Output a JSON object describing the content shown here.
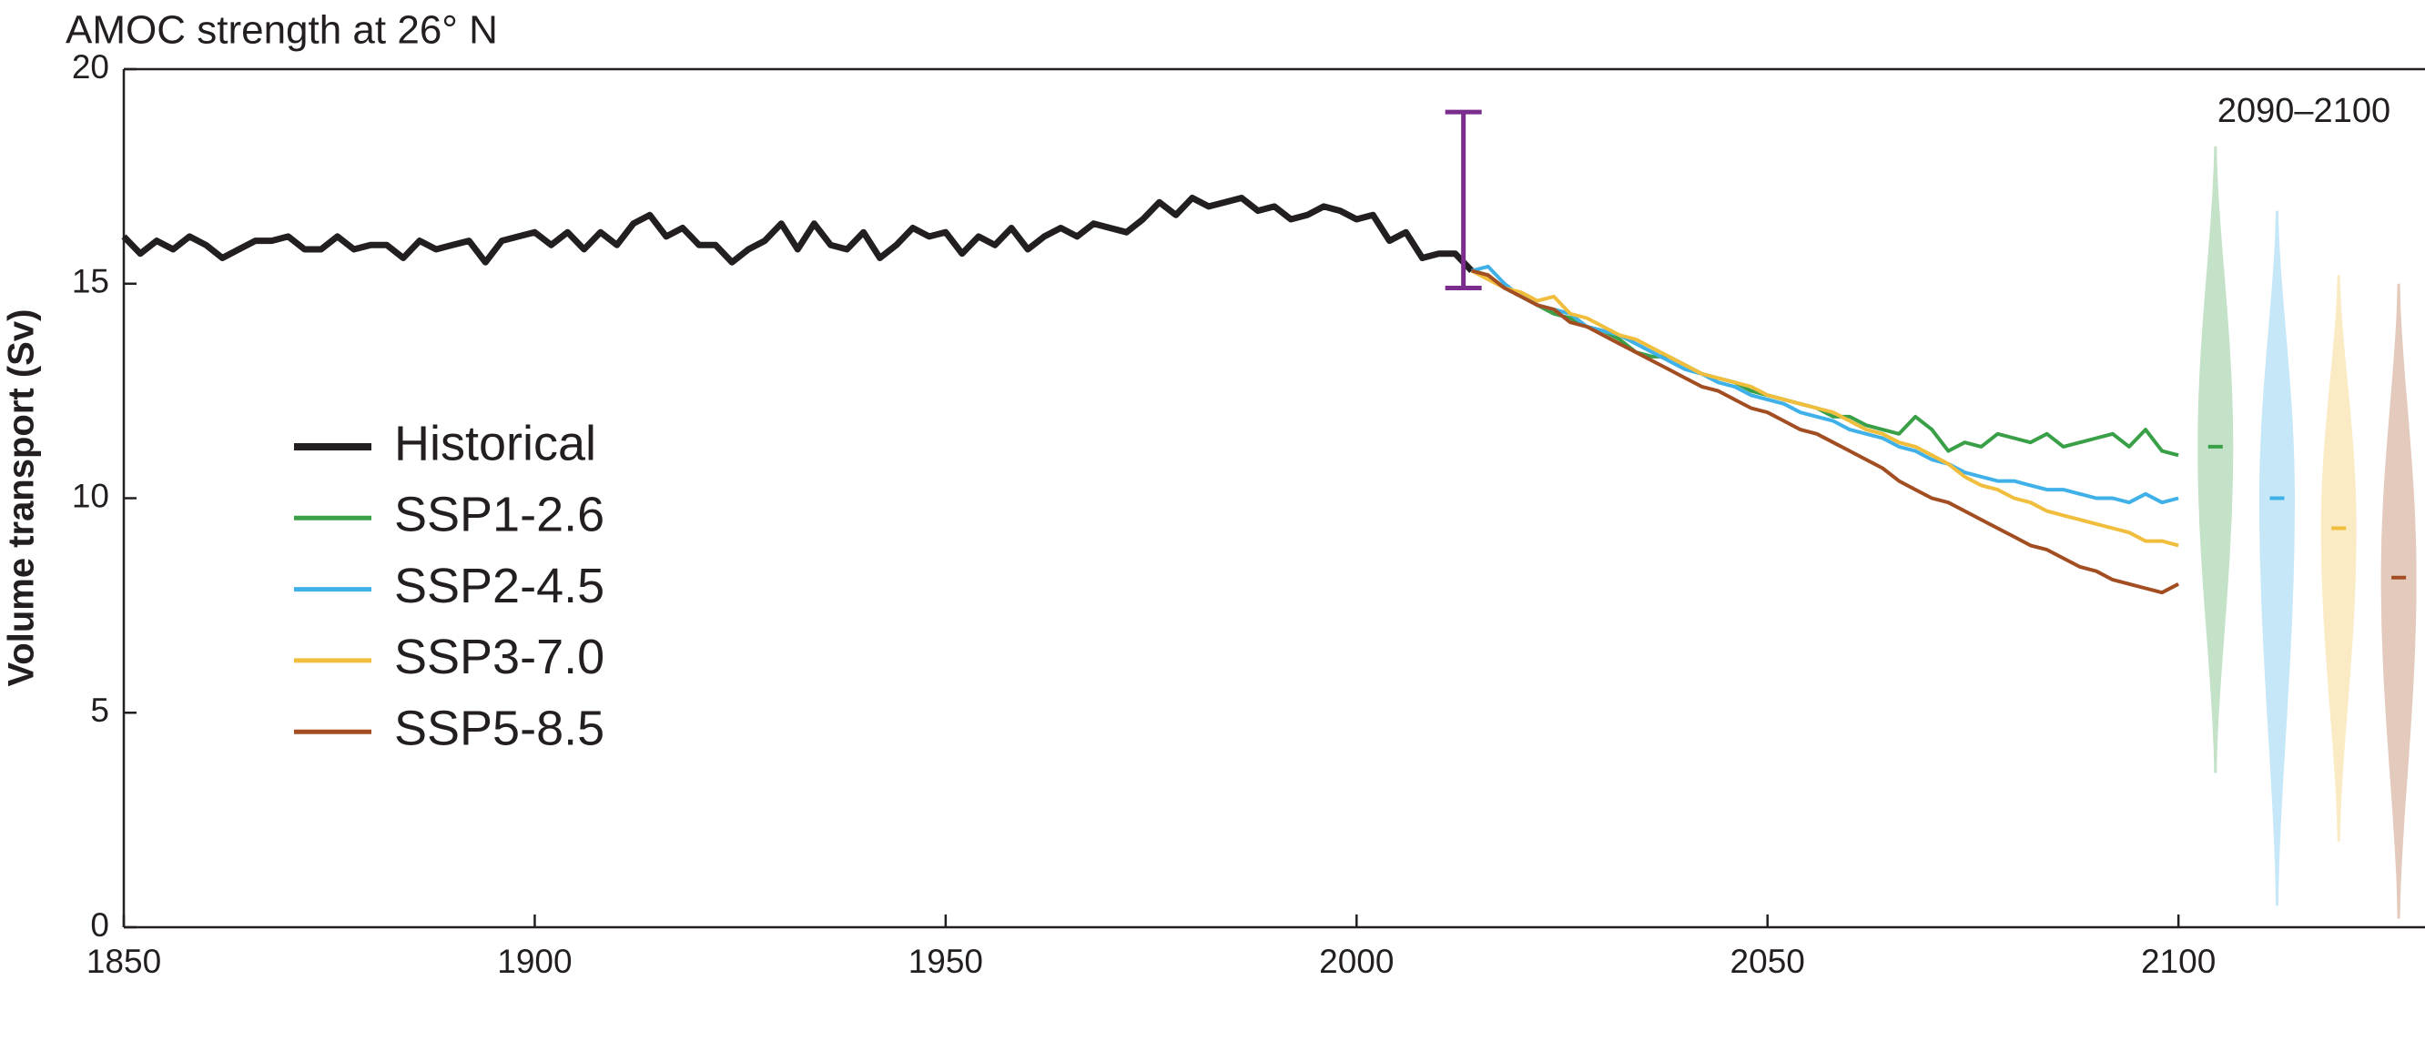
{
  "chart_data": {
    "type": "line",
    "title": "AMOC strength at 26° N",
    "y_label": "Volume transport (Sv)",
    "annotation": "2090–2100",
    "xlim": [
      1850,
      2130
    ],
    "ylim": [
      0,
      20
    ],
    "xticks": [
      1850,
      1900,
      1950,
      2000,
      2050,
      2100
    ],
    "yticks": [
      0,
      5,
      10,
      15,
      20
    ],
    "grid": false,
    "legend_position": "left",
    "observation": {
      "x": 2013,
      "low": 14.9,
      "high": 19.0,
      "color": "#7b2d8e"
    },
    "series": [
      {
        "name": "Historical",
        "color": "#231f20",
        "x": [
          1850,
          1852,
          1854,
          1856,
          1858,
          1860,
          1862,
          1864,
          1866,
          1868,
          1870,
          1872,
          1874,
          1876,
          1878,
          1880,
          1882,
          1884,
          1886,
          1888,
          1890,
          1892,
          1894,
          1896,
          1898,
          1900,
          1902,
          1904,
          1906,
          1908,
          1910,
          1912,
          1914,
          1916,
          1918,
          1920,
          1922,
          1924,
          1926,
          1928,
          1930,
          1932,
          1934,
          1936,
          1938,
          1940,
          1942,
          1944,
          1946,
          1948,
          1950,
          1952,
          1954,
          1956,
          1958,
          1960,
          1962,
          1964,
          1966,
          1968,
          1970,
          1972,
          1974,
          1976,
          1978,
          1980,
          1982,
          1984,
          1986,
          1988,
          1990,
          1992,
          1994,
          1996,
          1998,
          2000,
          2002,
          2004,
          2006,
          2008,
          2010,
          2012,
          2014
        ],
        "values": [
          16.1,
          15.7,
          16.0,
          15.8,
          16.1,
          15.9,
          15.6,
          15.8,
          16.0,
          16.0,
          16.1,
          15.8,
          15.8,
          16.1,
          15.8,
          15.9,
          15.9,
          15.6,
          16.0,
          15.8,
          15.9,
          16.0,
          15.5,
          16.0,
          16.1,
          16.2,
          15.9,
          16.2,
          15.8,
          16.2,
          15.9,
          16.4,
          16.6,
          16.1,
          16.3,
          15.9,
          15.9,
          15.5,
          15.8,
          16.0,
          16.4,
          15.8,
          16.4,
          15.9,
          15.8,
          16.2,
          15.6,
          15.9,
          16.3,
          16.1,
          16.2,
          15.7,
          16.1,
          15.9,
          16.3,
          15.8,
          16.1,
          16.3,
          16.1,
          16.4,
          16.3,
          16.2,
          16.5,
          16.9,
          16.6,
          17.0,
          16.8,
          16.9,
          17.0,
          16.7,
          16.8,
          16.5,
          16.6,
          16.8,
          16.7,
          16.5,
          16.6,
          16.0,
          16.2,
          15.6,
          15.7,
          15.7,
          15.3
        ]
      },
      {
        "name": "SSP1-2.6",
        "color": "#3aa048",
        "x": [
          2014,
          2016,
          2018,
          2020,
          2022,
          2024,
          2026,
          2028,
          2030,
          2032,
          2034,
          2036,
          2038,
          2040,
          2042,
          2044,
          2046,
          2048,
          2050,
          2052,
          2054,
          2056,
          2058,
          2060,
          2062,
          2064,
          2066,
          2068,
          2070,
          2072,
          2074,
          2076,
          2078,
          2080,
          2082,
          2084,
          2086,
          2088,
          2090,
          2092,
          2094,
          2096,
          2098,
          2100
        ],
        "values": [
          15.3,
          15.2,
          14.9,
          14.7,
          14.5,
          14.3,
          14.2,
          14.0,
          13.9,
          13.7,
          13.4,
          13.3,
          13.3,
          13.1,
          12.9,
          12.8,
          12.7,
          12.5,
          12.4,
          12.3,
          12.2,
          12.1,
          11.9,
          11.9,
          11.7,
          11.6,
          11.5,
          11.9,
          11.6,
          11.1,
          11.3,
          11.2,
          11.5,
          11.4,
          11.3,
          11.5,
          11.2,
          11.3,
          11.4,
          11.5,
          11.2,
          11.6,
          11.1,
          11.0
        ],
        "range_2090_2100": {
          "x": 2104.5,
          "min": 3.6,
          "max": 18.2,
          "median": 11.2
        }
      },
      {
        "name": "SSP2-4.5",
        "color": "#3fb1e8",
        "x": [
          2014,
          2016,
          2018,
          2020,
          2022,
          2024,
          2026,
          2028,
          2030,
          2032,
          2034,
          2036,
          2038,
          2040,
          2042,
          2044,
          2046,
          2048,
          2050,
          2052,
          2054,
          2056,
          2058,
          2060,
          2062,
          2064,
          2066,
          2068,
          2070,
          2072,
          2074,
          2076,
          2078,
          2080,
          2082,
          2084,
          2086,
          2088,
          2090,
          2092,
          2094,
          2096,
          2098,
          2100
        ],
        "values": [
          15.3,
          15.4,
          15.0,
          14.7,
          14.5,
          14.4,
          14.3,
          14.0,
          13.9,
          13.8,
          13.6,
          13.4,
          13.2,
          13.0,
          12.9,
          12.7,
          12.6,
          12.4,
          12.3,
          12.2,
          12.0,
          11.9,
          11.8,
          11.6,
          11.5,
          11.4,
          11.2,
          11.1,
          10.9,
          10.8,
          10.6,
          10.5,
          10.4,
          10.4,
          10.3,
          10.2,
          10.2,
          10.1,
          10.0,
          10.0,
          9.9,
          10.1,
          9.9,
          10.0
        ],
        "range_2090_2100": {
          "x": 2112,
          "min": 0.5,
          "max": 16.7,
          "median": 10.0
        }
      },
      {
        "name": "SSP3-7.0",
        "color": "#f0bd3c",
        "x": [
          2014,
          2016,
          2018,
          2020,
          2022,
          2024,
          2026,
          2028,
          2030,
          2032,
          2034,
          2036,
          2038,
          2040,
          2042,
          2044,
          2046,
          2048,
          2050,
          2052,
          2054,
          2056,
          2058,
          2060,
          2062,
          2064,
          2066,
          2068,
          2070,
          2072,
          2074,
          2076,
          2078,
          2080,
          2082,
          2084,
          2086,
          2088,
          2090,
          2092,
          2094,
          2096,
          2098,
          2100
        ],
        "values": [
          15.3,
          15.1,
          14.9,
          14.8,
          14.6,
          14.7,
          14.3,
          14.2,
          14.0,
          13.8,
          13.7,
          13.5,
          13.3,
          13.1,
          12.9,
          12.8,
          12.7,
          12.6,
          12.4,
          12.3,
          12.2,
          12.1,
          12.0,
          11.8,
          11.6,
          11.5,
          11.3,
          11.2,
          11.0,
          10.8,
          10.5,
          10.3,
          10.2,
          10.0,
          9.9,
          9.7,
          9.6,
          9.5,
          9.4,
          9.3,
          9.2,
          9.0,
          9.0,
          8.9
        ],
        "range_2090_2100": {
          "x": 2119.5,
          "min": 2.0,
          "max": 15.2,
          "median": 9.3
        }
      },
      {
        "name": "SSP5-8.5",
        "color": "#a24e22",
        "x": [
          2014,
          2016,
          2018,
          2020,
          2022,
          2024,
          2026,
          2028,
          2030,
          2032,
          2034,
          2036,
          2038,
          2040,
          2042,
          2044,
          2046,
          2048,
          2050,
          2052,
          2054,
          2056,
          2058,
          2060,
          2062,
          2064,
          2066,
          2068,
          2070,
          2072,
          2074,
          2076,
          2078,
          2080,
          2082,
          2084,
          2086,
          2088,
          2090,
          2092,
          2094,
          2096,
          2098,
          2100
        ],
        "values": [
          15.3,
          15.2,
          14.9,
          14.7,
          14.5,
          14.4,
          14.1,
          14.0,
          13.8,
          13.6,
          13.4,
          13.2,
          13.0,
          12.8,
          12.6,
          12.5,
          12.3,
          12.1,
          12.0,
          11.8,
          11.6,
          11.5,
          11.3,
          11.1,
          10.9,
          10.7,
          10.4,
          10.2,
          10.0,
          9.9,
          9.7,
          9.5,
          9.3,
          9.1,
          8.9,
          8.8,
          8.6,
          8.4,
          8.3,
          8.1,
          8.0,
          7.9,
          7.8,
          8.0
        ],
        "range_2090_2100": {
          "x": 2126.8,
          "min": 0.2,
          "max": 15.0,
          "median": 8.15
        }
      }
    ]
  }
}
